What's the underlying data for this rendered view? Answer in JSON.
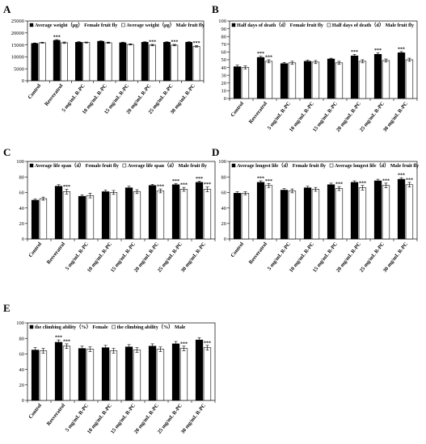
{
  "chart_data": [
    {
      "panel": "A",
      "type": "bar",
      "categories": [
        "Control",
        "Resveratrol",
        "5 mg/mL R-PC",
        "10 mg/mL R-PC",
        "15 mg/mL R-PC",
        "20 mg/mL R-PC",
        "25 mg/mL R-PC",
        "30 mg/mL R-PC"
      ],
      "series": [
        {
          "name": "Average weight（μg） Female fruit fly",
          "color": "#000000",
          "values": [
            15600,
            16900,
            16100,
            16500,
            15900,
            16100,
            16100,
            16100
          ],
          "errors": [
            200,
            300,
            250,
            200,
            250,
            200,
            200,
            200
          ],
          "stars": [
            "",
            "***",
            "",
            "",
            "",
            "",
            "",
            ""
          ]
        },
        {
          "name": "Average weight（μg） Male fruit fly",
          "color": "#ffffff",
          "values": [
            15900,
            15900,
            16000,
            15900,
            15200,
            14900,
            14900,
            14400
          ],
          "errors": [
            200,
            300,
            200,
            250,
            250,
            300,
            300,
            300
          ],
          "stars": [
            "",
            "",
            "",
            "",
            "",
            "***",
            "***",
            "***"
          ]
        }
      ],
      "ylim": [
        0,
        25000
      ],
      "yticks": [
        "0",
        "5000",
        "10000",
        "15000",
        "20000",
        "25000"
      ],
      "legend": "top-left"
    },
    {
      "panel": "B",
      "type": "bar",
      "categories": [
        "Control",
        "Resveratrol",
        "5 mg/mL R-PC",
        "10 mg/mL R-PC",
        "15 mg/mL R-PC",
        "20 mg/mL R-PC",
        "25 mg/mL R-PC",
        "30 mg/mL R-PC"
      ],
      "series": [
        {
          "name": "Half days of death（d） Female fruit fly",
          "color": "#000000",
          "values": [
            41,
            53,
            45,
            48,
            51,
            55,
            57,
            59
          ],
          "errors": [
            2,
            1.5,
            1.5,
            1.5,
            1,
            2,
            2,
            1.5
          ],
          "stars": [
            "",
            "***",
            "",
            "",
            "",
            "***",
            "***",
            "***"
          ]
        },
        {
          "name": "Half days of death（d） Male fruit fly",
          "color": "#ffffff",
          "values": [
            40,
            48,
            46,
            47,
            46,
            48,
            49,
            50
          ],
          "errors": [
            2,
            2,
            2,
            2,
            2,
            2,
            2,
            2
          ],
          "stars": [
            "",
            "***",
            "",
            "",
            "",
            "",
            "",
            ""
          ]
        }
      ],
      "ylim": [
        0,
        100
      ],
      "yticks": [
        "0",
        "10",
        "20",
        "30",
        "40",
        "50",
        "60",
        "70",
        "80",
        "90",
        "100"
      ],
      "legend": "top-left"
    },
    {
      "panel": "C",
      "type": "bar",
      "categories": [
        "Control",
        "Resveratrol",
        "5 mg/mL R-PC",
        "10 mg/mL R-PC",
        "15 mg/mL R-PC",
        "20 mg/mL R-PC",
        "25 mg/mL R-PC",
        "30 mg/mL R-PC"
      ],
      "series": [
        {
          "name": "Average life span（d） Female fruit fly",
          "color": "#000000",
          "values": [
            50,
            68,
            55,
            61,
            66,
            69,
            70,
            73
          ],
          "errors": [
            1.5,
            2,
            2,
            2,
            2,
            1.5,
            1.5,
            1.5
          ],
          "stars": [
            "",
            "",
            "",
            "",
            "",
            "",
            "***",
            "***"
          ]
        },
        {
          "name": "Average life span（d） Male fruit fly",
          "color": "#ffffff",
          "values": [
            52,
            61,
            56,
            60,
            61,
            62,
            64,
            64
          ],
          "errors": [
            2,
            3,
            3,
            2.5,
            2.5,
            2.5,
            2.5,
            3
          ],
          "stars": [
            "",
            "***",
            "",
            "",
            "",
            "***",
            "***",
            "***"
          ]
        }
      ],
      "ylim": [
        0,
        100
      ],
      "yticks": [
        "0",
        "20",
        "40",
        "60",
        "80",
        "100"
      ],
      "legend": "top-left"
    },
    {
      "panel": "D",
      "type": "bar",
      "categories": [
        "Control",
        "Resveratrol",
        "5 mg/mL R-PC",
        "10 mg/mL R-PC",
        "15 mg/mL R-PC",
        "20 mg/mL R-PC",
        "25 mg/mL R-PC",
        "30 mg/mL R-PC"
      ],
      "series": [
        {
          "name": "Average longest life（d） Female fruit fly",
          "color": "#000000",
          "values": [
            59,
            73,
            63,
            66,
            70,
            73,
            75,
            77
          ],
          "errors": [
            2,
            2,
            2,
            2,
            2,
            2,
            2,
            2
          ],
          "stars": [
            "",
            "***",
            "",
            "",
            "",
            "",
            "",
            "***"
          ]
        },
        {
          "name": "Average longest life（d） Male fruit fly",
          "color": "#ffffff",
          "values": [
            59,
            69,
            62,
            64,
            65,
            66,
            69,
            70
          ],
          "errors": [
            2,
            2.5,
            2.5,
            2.5,
            2.5,
            3,
            3,
            3
          ],
          "stars": [
            "",
            "***",
            "",
            "",
            "***",
            "***",
            "***",
            "***"
          ]
        }
      ],
      "ylim": [
        0,
        100
      ],
      "yticks": [
        "0",
        "20",
        "40",
        "60",
        "80",
        "100"
      ],
      "legend": "top-left"
    },
    {
      "panel": "E",
      "type": "bar",
      "categories": [
        "Control",
        "Resveratrol",
        "5 mg/mL R-PC",
        "10 mg/mL R-PC",
        "15 mg/mL R-PC",
        "20 mg/mL R-PC",
        "25 mg/mL R-PC",
        "30 mg/mL R-PC"
      ],
      "series": [
        {
          "name": "the climbing ability（%） Female",
          "color": "#000000",
          "values": [
            65,
            75,
            67,
            68,
            69,
            70,
            73,
            78
          ],
          "errors": [
            3,
            3,
            3,
            3,
            3,
            3,
            3,
            3
          ],
          "stars": [
            "",
            "***",
            "",
            "",
            "",
            "",
            "",
            ""
          ]
        },
        {
          "name": "the climbing ability（%） Male",
          "color": "#ffffff",
          "values": [
            64,
            70,
            66,
            64,
            65,
            66,
            67,
            68
          ],
          "errors": [
            3,
            3,
            3,
            3,
            3,
            3,
            3,
            3
          ],
          "stars": [
            "",
            "***",
            "",
            "",
            "",
            "",
            "***",
            "***"
          ]
        }
      ],
      "ylim": [
        0,
        100
      ],
      "yticks": [
        "0",
        "20",
        "40",
        "60",
        "80",
        "100"
      ],
      "legend": "top-left"
    }
  ]
}
